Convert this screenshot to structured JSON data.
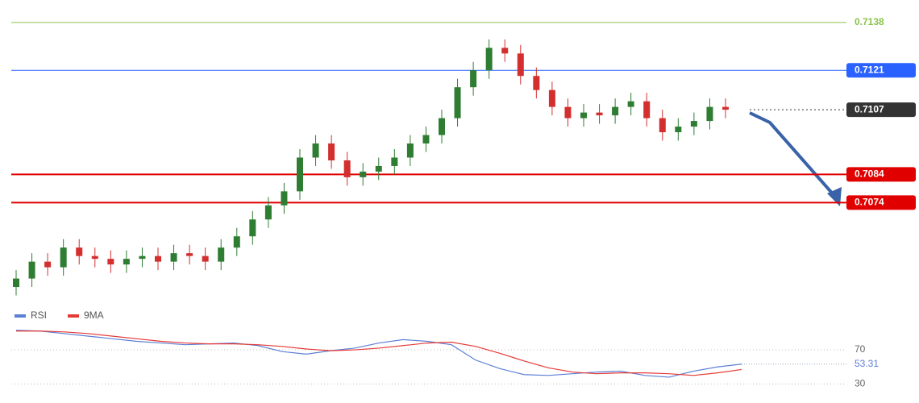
{
  "chart_data": [
    {
      "type": "candlestick",
      "ylim": [
        0.704,
        0.7146
      ],
      "open": [
        0.7044,
        0.7047,
        0.7053,
        0.7051,
        0.7058,
        0.7055,
        0.7054,
        0.7052,
        0.7054,
        0.7055,
        0.7053,
        0.7056,
        0.7055,
        0.7053,
        0.7058,
        0.7062,
        0.7068,
        0.7073,
        0.7078,
        0.709,
        0.7095,
        0.7089,
        0.7083,
        0.7085,
        0.7087,
        0.709,
        0.7095,
        0.7098,
        0.7104,
        0.7115,
        0.7121,
        0.7129,
        0.7127,
        0.7119,
        0.7114,
        0.7108,
        0.7104,
        0.7106,
        0.7105,
        0.7108,
        0.711,
        0.7104,
        0.7099,
        0.7101,
        0.7103,
        0.7108
      ],
      "high": [
        0.705,
        0.7056,
        0.7056,
        0.7061,
        0.7061,
        0.7058,
        0.7057,
        0.7057,
        0.7058,
        0.7058,
        0.7059,
        0.7059,
        0.7058,
        0.7061,
        0.7065,
        0.7071,
        0.7076,
        0.7081,
        0.7093,
        0.7098,
        0.7098,
        0.7092,
        0.7088,
        0.709,
        0.7093,
        0.7098,
        0.7101,
        0.7107,
        0.7118,
        0.7124,
        0.7132,
        0.7132,
        0.713,
        0.7122,
        0.7117,
        0.7111,
        0.7109,
        0.7109,
        0.7111,
        0.7113,
        0.7113,
        0.7107,
        0.7104,
        0.7106,
        0.7111,
        0.7111
      ],
      "low": [
        0.7041,
        0.7044,
        0.7048,
        0.7048,
        0.7052,
        0.7051,
        0.7049,
        0.7049,
        0.7051,
        0.705,
        0.705,
        0.7052,
        0.705,
        0.705,
        0.7055,
        0.7059,
        0.7065,
        0.707,
        0.7075,
        0.7087,
        0.7086,
        0.708,
        0.708,
        0.7082,
        0.7084,
        0.7087,
        0.7092,
        0.7095,
        0.7101,
        0.7112,
        0.7118,
        0.7124,
        0.7116,
        0.7111,
        0.7105,
        0.7101,
        0.7101,
        0.7102,
        0.7102,
        0.7105,
        0.7101,
        0.7096,
        0.7096,
        0.7098,
        0.71,
        0.7104
      ],
      "close": [
        0.7047,
        0.7053,
        0.7051,
        0.7058,
        0.7055,
        0.7054,
        0.7052,
        0.7054,
        0.7055,
        0.7053,
        0.7056,
        0.7055,
        0.7053,
        0.7058,
        0.7062,
        0.7068,
        0.7073,
        0.7078,
        0.709,
        0.7095,
        0.7089,
        0.7083,
        0.7085,
        0.7087,
        0.709,
        0.7095,
        0.7098,
        0.7104,
        0.7115,
        0.7121,
        0.7129,
        0.7127,
        0.7119,
        0.7114,
        0.7108,
        0.7104,
        0.7106,
        0.7105,
        0.7108,
        0.711,
        0.7104,
        0.7099,
        0.7101,
        0.7103,
        0.7108,
        0.7107
      ],
      "up_color": "#2e7d32",
      "down_color": "#d32f2f",
      "levels": [
        {
          "value": 0.7138,
          "color": "#8bc34a",
          "box": false,
          "dotted": false
        },
        {
          "value": 0.7121,
          "color": "#2962ff",
          "box": true,
          "dotted": false
        },
        {
          "value": 0.7107,
          "color": "#333333",
          "box": true,
          "dotted": true
        },
        {
          "value": 0.7084,
          "color": "#e00000",
          "box": true,
          "dotted": false
        },
        {
          "value": 0.7074,
          "color": "#e00000",
          "box": true,
          "dotted": false
        }
      ]
    },
    {
      "type": "line",
      "ylim": [
        20,
        105
      ],
      "yticks": [
        70,
        30
      ],
      "last_value": 53.31,
      "series": [
        {
          "name": "RSI",
          "color": "#5b7fd6",
          "values": [
            93,
            92,
            89,
            86,
            83,
            80,
            78,
            76,
            77,
            78,
            75,
            68,
            65,
            69,
            72,
            78,
            82,
            80,
            76,
            58,
            48,
            41,
            40,
            42,
            44,
            45,
            40,
            38,
            45,
            50,
            53.31
          ]
        },
        {
          "name": "9MA",
          "color": "#e53935",
          "values": [
            92,
            92,
            91,
            89,
            86,
            83,
            80,
            78,
            77,
            77,
            76,
            74,
            71,
            69,
            70,
            72,
            75,
            78,
            79,
            74,
            66,
            57,
            49,
            44,
            42,
            43,
            43,
            42,
            40,
            43,
            47
          ]
        }
      ]
    }
  ]
}
